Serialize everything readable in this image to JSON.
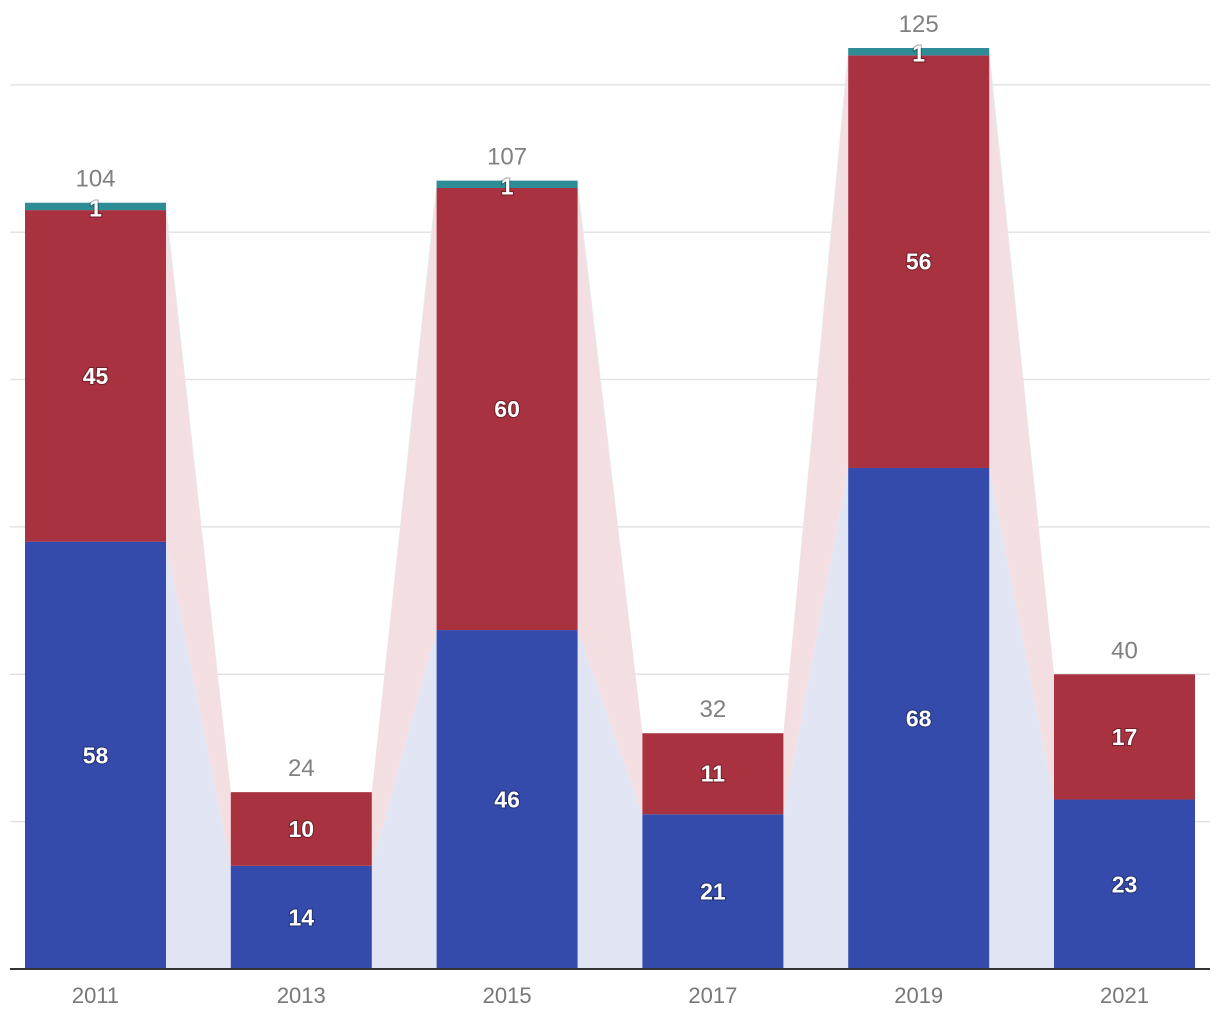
{
  "chart_data": {
    "type": "bar",
    "stacked": true,
    "categories": [
      "2011",
      "2013",
      "2015",
      "2017",
      "2019",
      "2021"
    ],
    "series": [
      {
        "values": [
          58,
          14,
          46,
          21,
          68,
          23
        ],
        "color": "#344BAB",
        "band_color": "#E1E4F3"
      },
      {
        "values": [
          45,
          10,
          60,
          11,
          56,
          17
        ],
        "color": "#A83240",
        "band_color": "#F3DFE1"
      },
      {
        "values": [
          1,
          0,
          1,
          0,
          1,
          0
        ],
        "color": "#2E8C96",
        "band_color": "#DDEFF0"
      }
    ],
    "totals": [
      "104",
      "24",
      "107",
      "32",
      "125",
      "40"
    ],
    "ylim": [
      0,
      130
    ],
    "gridlines": [
      20,
      40,
      60,
      80,
      100,
      120
    ],
    "grid": true,
    "legend": "none",
    "title": "",
    "xlabel": "",
    "ylabel": ""
  }
}
